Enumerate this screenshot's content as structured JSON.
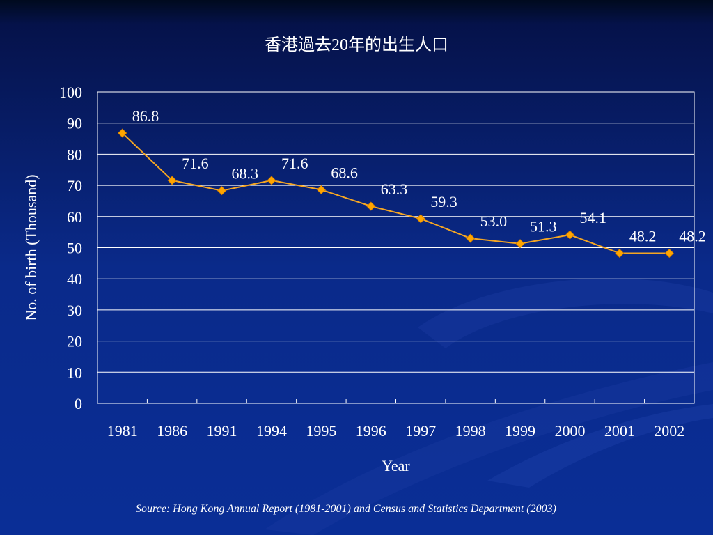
{
  "slide": {
    "title": "香港過去20年的出生人口",
    "source": "Source: Hong Kong Annual Report (1981-2001) and Census and Statistics Department (2003)"
  },
  "colors": {
    "background": "#0a2e96",
    "line": "#f5a623",
    "marker": "#ffa500",
    "grid": "#ffffff",
    "text": "#ffffff"
  },
  "chart_data": {
    "type": "line",
    "title": "香港過去20年的出生人口",
    "xlabel": "Year",
    "ylabel": "No. of birth (Thousand)",
    "categories": [
      "1981",
      "1986",
      "1991",
      "1994",
      "1995",
      "1996",
      "1997",
      "1998",
      "1999",
      "2000",
      "2001",
      "2002"
    ],
    "values": [
      86.8,
      71.6,
      68.3,
      71.6,
      68.6,
      63.3,
      59.3,
      53.0,
      51.3,
      54.1,
      48.2,
      48.2
    ],
    "data_labels": [
      "86.8",
      "71.6",
      "68.3",
      "71.6",
      "68.6",
      "63.3",
      "59.3",
      "53.0",
      "51.3",
      "54.1",
      "48.2",
      "48.2"
    ],
    "ylim": [
      0,
      100
    ],
    "yticks": [
      0,
      10,
      20,
      30,
      40,
      50,
      60,
      70,
      80,
      90,
      100
    ],
    "grid": true,
    "legend": "none",
    "marker": "diamond"
  }
}
